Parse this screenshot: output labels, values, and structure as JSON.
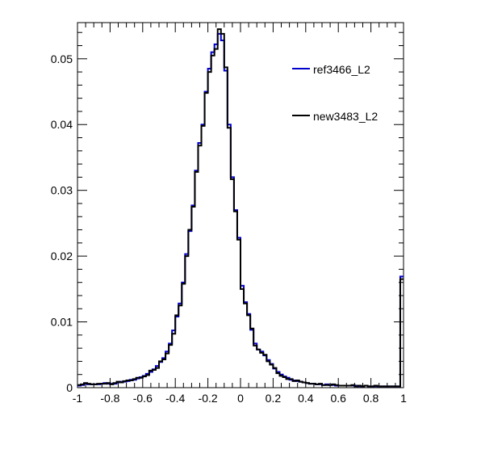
{
  "chart_data": {
    "type": "step",
    "title": "",
    "xlabel": "",
    "ylabel": "",
    "xlim": [
      -1,
      1
    ],
    "ylim": [
      0,
      0.0555
    ],
    "bins": 100,
    "x_ticks": [
      "-1",
      "-0.8",
      "-0.6",
      "-0.4",
      "-0.2",
      "0",
      "0.2",
      "0.4",
      "0.6",
      "0.8",
      "1"
    ],
    "y_ticks": [
      "0",
      "0.01",
      "0.02",
      "0.03",
      "0.04",
      "0.05"
    ],
    "legend_placement": "top-right",
    "grid": false,
    "series": [
      {
        "name": "ref3466_L2",
        "color": "#0000cc",
        "values": [
          0.0003,
          0.0004,
          0.0006,
          0.0005,
          0.0005,
          0.0005,
          0.0005,
          0.0006,
          0.0007,
          0.0006,
          0.0006,
          0.0006,
          0.0008,
          0.0009,
          0.0009,
          0.001,
          0.0012,
          0.0012,
          0.0014,
          0.0016,
          0.0018,
          0.0021,
          0.0024,
          0.0028,
          0.0033,
          0.0039,
          0.0045,
          0.0055,
          0.0067,
          0.0087,
          0.0108,
          0.0128,
          0.016,
          0.0203,
          0.0238,
          0.0277,
          0.033,
          0.0372,
          0.04,
          0.045,
          0.0485,
          0.051,
          0.0522,
          0.0538,
          0.0528,
          0.0482,
          0.04,
          0.032,
          0.027,
          0.0228,
          0.0155,
          0.013,
          0.0112,
          0.0088,
          0.0067,
          0.0058,
          0.0055,
          0.0049,
          0.0042,
          0.0036,
          0.0029,
          0.0024,
          0.002,
          0.0017,
          0.0015,
          0.0012,
          0.0011,
          0.001,
          0.0009,
          0.0008,
          0.0007,
          0.0006,
          0.0006,
          0.0005,
          0.0005,
          0.0004,
          0.0005,
          0.0004,
          0.0004,
          0.0003,
          0.0003,
          0.0003,
          0.0003,
          0.0003,
          0.0003,
          0.0003,
          0.0002,
          0.0002,
          0.0003,
          0.0002,
          0.0002,
          0.0002,
          0.0002,
          0.0002,
          0.0002,
          0.0002,
          0.0002,
          0.0002,
          0.0002,
          0.0169
        ]
      },
      {
        "name": "new3483_L2",
        "color": "#000000",
        "values": [
          0.0004,
          0.0005,
          0.0007,
          0.0006,
          0.0005,
          0.0005,
          0.0006,
          0.0006,
          0.0006,
          0.0007,
          0.0005,
          0.0007,
          0.0009,
          0.0008,
          0.001,
          0.0011,
          0.0011,
          0.0013,
          0.0015,
          0.0015,
          0.0017,
          0.0019,
          0.0026,
          0.0027,
          0.003,
          0.004,
          0.0043,
          0.0052,
          0.0065,
          0.0082,
          0.011,
          0.0125,
          0.0158,
          0.02,
          0.024,
          0.0275,
          0.0328,
          0.0368,
          0.0398,
          0.0448,
          0.048,
          0.0505,
          0.0515,
          0.0545,
          0.0538,
          0.0487,
          0.0395,
          0.0317,
          0.0268,
          0.0225,
          0.015,
          0.0128,
          0.011,
          0.009,
          0.0064,
          0.0058,
          0.0053,
          0.005,
          0.004,
          0.0035,
          0.003,
          0.0022,
          0.0018,
          0.0016,
          0.0013,
          0.0013,
          0.001,
          0.0011,
          0.0009,
          0.0008,
          0.0007,
          0.0006,
          0.0006,
          0.0005,
          0.0006,
          0.0004,
          0.0004,
          0.0004,
          0.0005,
          0.0004,
          0.0003,
          0.0003,
          0.0003,
          0.0003,
          0.0004,
          0.0002,
          0.0003,
          0.0002,
          0.0003,
          0.0002,
          0.0002,
          0.0003,
          0.0002,
          0.0002,
          0.0002,
          0.0002,
          0.0002,
          0.0002,
          0.0002,
          0.0165
        ]
      }
    ]
  }
}
